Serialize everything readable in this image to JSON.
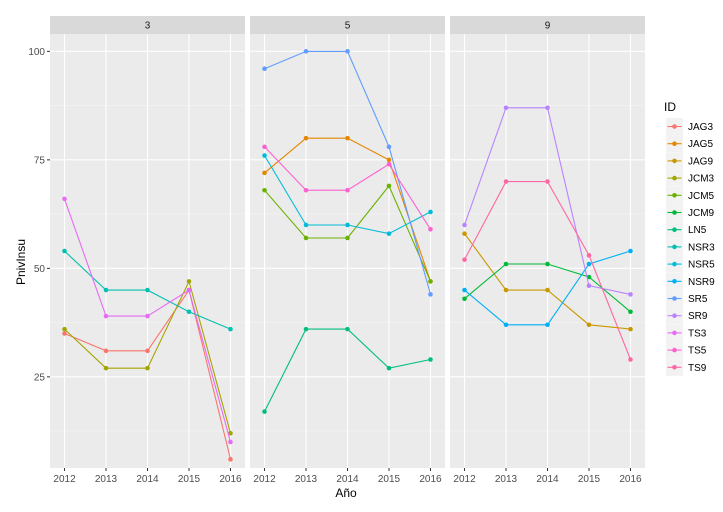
{
  "chart_data": {
    "type": "line",
    "xlabel": "Año",
    "ylabel": "PnivInsu",
    "x": [
      2012,
      2013,
      2014,
      2015,
      2016
    ],
    "xlim": [
      2011.65,
      2016.35
    ],
    "ylim": [
      4,
      104
    ],
    "yticks": [
      25,
      50,
      75,
      100
    ],
    "panels": [
      "3",
      "5",
      "9"
    ],
    "legend_title": "ID",
    "legend_position": "right",
    "grid": true,
    "series": [
      {
        "name": "JAG3",
        "panel": "3",
        "color": "#F8766D",
        "values": [
          35,
          31,
          31,
          45,
          6
        ]
      },
      {
        "name": "JAG5",
        "panel": "5",
        "color": "#E58700",
        "values": [
          72,
          80,
          80,
          75,
          47
        ]
      },
      {
        "name": "JAG9",
        "panel": "9",
        "color": "#C99800",
        "values": [
          58,
          45,
          45,
          37,
          36
        ]
      },
      {
        "name": "JCM3",
        "panel": "3",
        "color": "#A3A500",
        "values": [
          36,
          27,
          27,
          47,
          12
        ]
      },
      {
        "name": "JCM5",
        "panel": "5",
        "color": "#6BB100",
        "values": [
          68,
          57,
          57,
          69,
          47
        ]
      },
      {
        "name": "JCM9",
        "panel": "9",
        "color": "#00BA38",
        "values": [
          43,
          51,
          51,
          48,
          40
        ]
      },
      {
        "name": "LN5",
        "panel": "5",
        "color": "#00BF7D",
        "values": [
          17,
          36,
          36,
          27,
          29
        ]
      },
      {
        "name": "NSR3",
        "panel": "3",
        "color": "#00C0AF",
        "values": [
          54,
          45,
          45,
          40,
          36
        ]
      },
      {
        "name": "NSR5",
        "panel": "5",
        "color": "#00BCD8",
        "values": [
          76,
          60,
          60,
          58,
          63
        ]
      },
      {
        "name": "NSR9",
        "panel": "9",
        "color": "#00B0F6",
        "values": [
          45,
          37,
          37,
          51,
          54
        ]
      },
      {
        "name": "SR5",
        "panel": "5",
        "color": "#619CFF",
        "values": [
          96,
          100,
          100,
          78,
          44
        ]
      },
      {
        "name": "SR9",
        "panel": "9",
        "color": "#B983FF",
        "values": [
          60,
          87,
          87,
          46,
          44
        ]
      },
      {
        "name": "TS3",
        "panel": "3",
        "color": "#E76BF3",
        "values": [
          66,
          39,
          39,
          45,
          10
        ]
      },
      {
        "name": "TS5",
        "panel": "5",
        "color": "#FD61D1",
        "values": [
          78,
          68,
          68,
          74,
          59
        ]
      },
      {
        "name": "TS9",
        "panel": "9",
        "color": "#FF67A4",
        "values": [
          52,
          70,
          70,
          53,
          29
        ]
      }
    ]
  }
}
